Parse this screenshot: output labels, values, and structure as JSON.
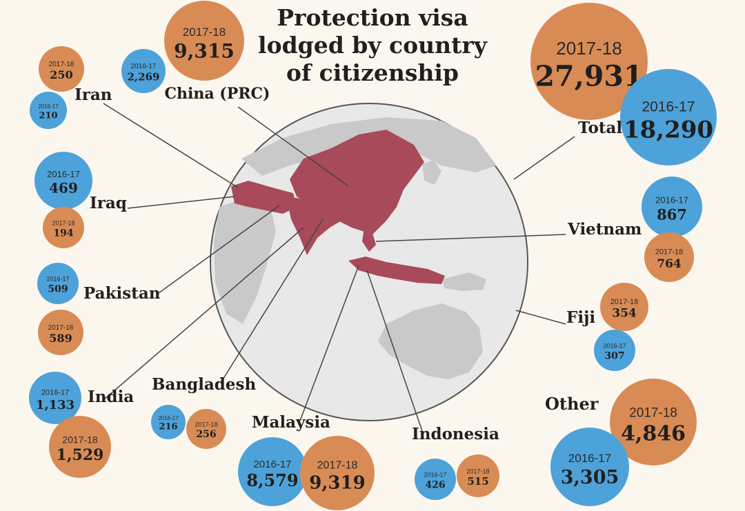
{
  "title_lines": [
    "Protection visa",
    "lodged by country",
    "of citizenship"
  ],
  "colors": {
    "background": "#fcf7ee",
    "series_2016": "#4da2d9",
    "series_2017": "#d98b55",
    "map_globe": "#e8e8e8",
    "map_land": "#c9c9c9",
    "map_highlight": "#a84a5a",
    "leader_line": "#444444"
  },
  "chart_data": {
    "type": "bubble",
    "title": "Protection visa lodged by country of citizenship",
    "series": [
      {
        "name": "2016-17",
        "color": "#4da2d9"
      },
      {
        "name": "2017-18",
        "color": "#d98b55"
      }
    ],
    "countries": [
      {
        "name": "China (PRC)",
        "values": {
          "2016-17": 2269,
          "2017-18": 9315
        },
        "labels": {
          "2016-17": "2,269",
          "2017-18": "9,315"
        },
        "year_labels": {
          "2016-17": "2016-17",
          "2017-18": "2017-18"
        }
      },
      {
        "name": "Iran",
        "values": {
          "2016-17": 210,
          "2017-18": 250
        },
        "labels": {
          "2016-17": "210",
          "2017-18": "250"
        },
        "year_labels": {
          "2016-17": "2016-17",
          "2017-18": "2017-18"
        }
      },
      {
        "name": "Iraq",
        "values": {
          "2016-17": 469,
          "2017-18": 194
        },
        "labels": {
          "2016-17": "469",
          "2017-18": "194"
        },
        "year_labels": {
          "2016-17": "2016-17",
          "2017-18": "2017-18"
        }
      },
      {
        "name": "Pakistan",
        "values": {
          "2016-17": 509,
          "2017-18": 589
        },
        "labels": {
          "2016-17": "509",
          "2017-18": "589"
        },
        "year_labels": {
          "2016-17": "2016-17",
          "2017-18": "2017-18"
        }
      },
      {
        "name": "India",
        "values": {
          "2016-17": 1133,
          "2017-18": 1529
        },
        "labels": {
          "2016-17": "1,133",
          "2017-18": "1,529"
        },
        "year_labels": {
          "2016-17": "2016-17",
          "2017-18": "2017-18"
        }
      },
      {
        "name": "Bangladesh",
        "values": {
          "2016-17": 216,
          "2017-18": 256
        },
        "labels": {
          "2016-17": "216",
          "2017-18": "256"
        },
        "year_labels": {
          "2016-17": "2016-17",
          "2017-18": "2017-18"
        }
      },
      {
        "name": "Malaysia",
        "values": {
          "2016-17": 8579,
          "2017-18": 9319
        },
        "labels": {
          "2016-17": "8,579",
          "2017-18": "9,319"
        },
        "year_labels": {
          "2016-17": "2016-17",
          "2017-18": "2017-18"
        }
      },
      {
        "name": "Indonesia",
        "values": {
          "2016-17": 426,
          "2017-18": 515
        },
        "labels": {
          "2016-17": "426",
          "2017-18": "515"
        },
        "year_labels": {
          "2016-17": "2016-17",
          "2017-18": "2017-18"
        }
      },
      {
        "name": "Other",
        "values": {
          "2016-17": 3305,
          "2017-18": 4846
        },
        "labels": {
          "2016-17": "3,305",
          "2017-18": "4,846"
        },
        "year_labels": {
          "2016-17": "2016-17",
          "2017-18": "2017-18"
        }
      },
      {
        "name": "Fiji",
        "values": {
          "2016-17": 307,
          "2017-18": 354
        },
        "labels": {
          "2016-17": "307",
          "2017-18": "354"
        },
        "year_labels": {
          "2016-17": "2016-17",
          "2017-18": "2017-18"
        }
      },
      {
        "name": "Vietnam",
        "values": {
          "2016-17": 867,
          "2017-18": 764
        },
        "labels": {
          "2016-17": "867",
          "2017-18": "764"
        },
        "year_labels": {
          "2016-17": "2016-17",
          "2017-18": "2017-18"
        }
      },
      {
        "name": "Total",
        "values": {
          "2016-17": 18290,
          "2017-18": 27931
        },
        "labels": {
          "2016-17": "18,290",
          "2017-18": "27,931"
        },
        "year_labels": {
          "2016-17": "2016-17",
          "2017-18": "2017-18"
        }
      }
    ]
  }
}
